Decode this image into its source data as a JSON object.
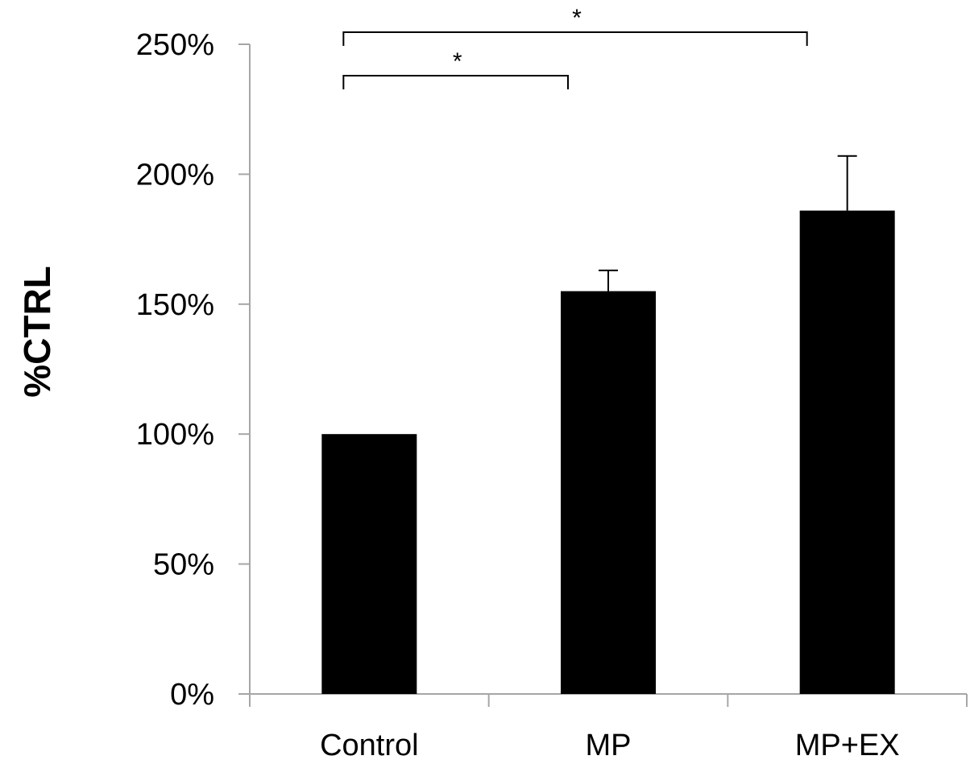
{
  "chart_data": {
    "type": "bar",
    "title": "",
    "xlabel": "",
    "ylabel": "%CTRL",
    "ylim": [
      0,
      250
    ],
    "ytick_values": [
      0,
      50,
      100,
      150,
      200,
      250
    ],
    "ytick_labels": [
      "0%",
      "50%",
      "100%",
      "150%",
      "200%",
      "250%"
    ],
    "categories": [
      "Control",
      "MP",
      "MP+EX"
    ],
    "values": [
      100,
      155,
      186
    ],
    "errors": [
      0,
      8,
      21
    ],
    "bar_color": "#000000",
    "axis_color": "#a6a6a6",
    "grid": false,
    "legend": "none",
    "annotations": [
      {
        "from": 0,
        "to": 1,
        "text": "*",
        "level": 1
      },
      {
        "from": 0,
        "to": 2,
        "text": "*",
        "level": 2
      }
    ]
  }
}
